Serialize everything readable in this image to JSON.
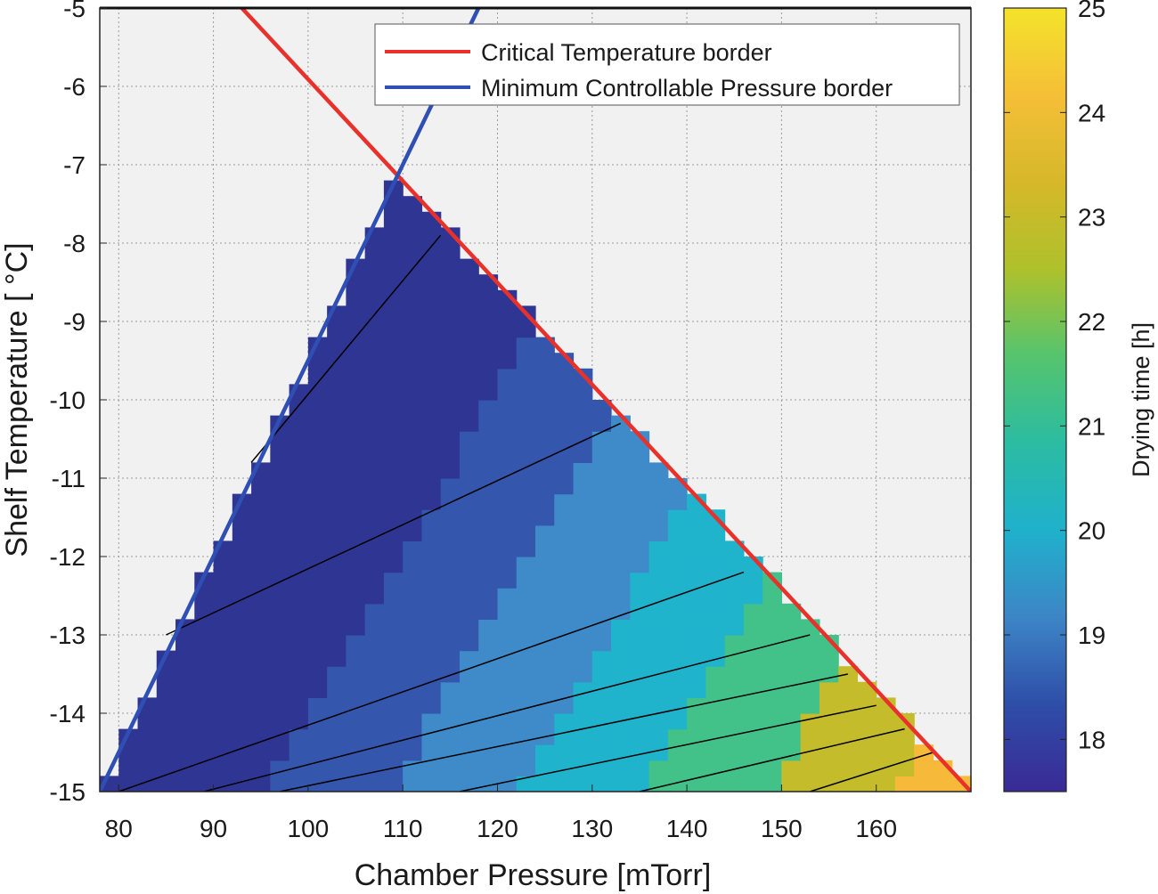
{
  "chart_data": {
    "type": "heatmap",
    "xlabel": "Chamber Pressure [mTorr]",
    "ylabel": "Shelf Temperature [ °C]",
    "xlim": [
      78,
      170
    ],
    "ylim": [
      -15,
      -5
    ],
    "xticks": [
      80,
      90,
      100,
      110,
      120,
      130,
      140,
      150,
      160
    ],
    "yticks": [
      -5,
      -6,
      -7,
      -8,
      -9,
      -10,
      -11,
      -12,
      -13,
      -14,
      -15
    ],
    "grid": true,
    "legend_placement": "top-right",
    "series": [
      {
        "name": "Critical Temperature border",
        "color": "#e8312a",
        "x": [
          93,
          170
        ],
        "y": [
          -5,
          -15
        ]
      },
      {
        "name": "Minimum Controllable Pressure border",
        "color": "#2f4fb5",
        "x": [
          78,
          118
        ],
        "y": [
          -15,
          -5
        ]
      }
    ],
    "colorbar": {
      "label": "Drying time [h]",
      "ticks": [
        18,
        19,
        20,
        21,
        22,
        23,
        24,
        25
      ],
      "range": [
        17.5,
        25
      ],
      "colormap": [
        "#3a2a95",
        "#2e4ea8",
        "#3d85c6",
        "#1fb1cc",
        "#2bbca2",
        "#55c46e",
        "#aec12b",
        "#d6b82a",
        "#f5bf37",
        "#f4e32a"
      ]
    },
    "contour_levels": [
      {
        "level": 18,
        "color": "#2f3592"
      },
      {
        "level": 19,
        "color": "#3456ad"
      },
      {
        "level": 20,
        "color": "#3f8bc9"
      },
      {
        "level": 21,
        "color": "#1fb3cc"
      },
      {
        "level": 22,
        "color": "#42c189"
      },
      {
        "level": 23,
        "color": "#c4bc2b"
      },
      {
        "level": 24,
        "color": "#f7b93a"
      },
      {
        "level": 25,
        "color": "#efe22f"
      }
    ],
    "contour_lines": [
      {
        "x": [
          94,
          114
        ],
        "y": [
          -10.8,
          -7.9
        ]
      },
      {
        "x": [
          85,
          133
        ],
        "y": [
          -13,
          -10.3
        ]
      },
      {
        "x": [
          80,
          146
        ],
        "y": [
          -15,
          -12.2
        ]
      },
      {
        "x": [
          89,
          153
        ],
        "y": [
          -15,
          -13
        ]
      },
      {
        "x": [
          97,
          157
        ],
        "y": [
          -15,
          -13.5
        ]
      },
      {
        "x": [
          116,
          160
        ],
        "y": [
          -15,
          -13.9
        ]
      },
      {
        "x": [
          135,
          163
        ],
        "y": [
          -15,
          -14.2
        ]
      },
      {
        "x": [
          153,
          166
        ],
        "y": [
          -15,
          -14.5
        ]
      }
    ]
  }
}
